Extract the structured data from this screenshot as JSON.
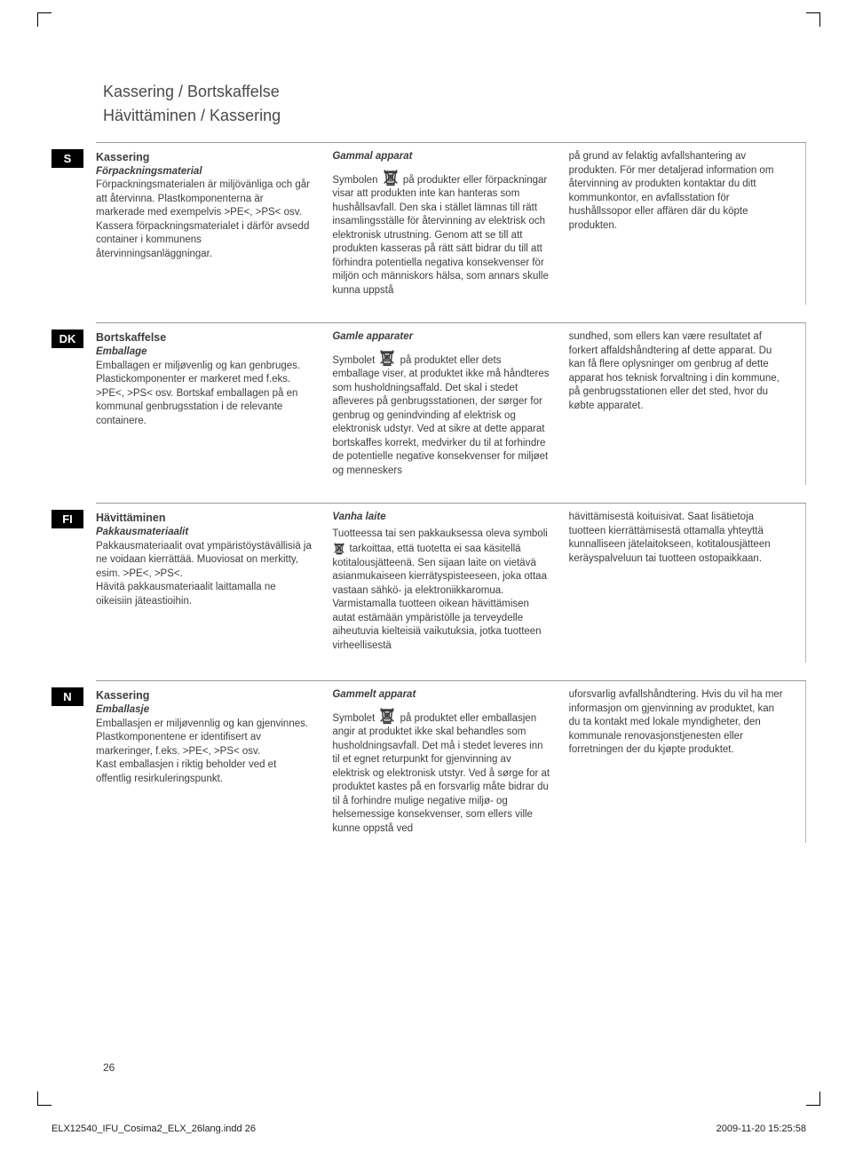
{
  "heading_line1": "Kassering  /  Bortskaffelse",
  "heading_line2": "Hävittäminen  /  Kassering",
  "page_number": "26",
  "footer_file": "ELX12540_IFU_Cosima2_ELX_26lang.indd   26",
  "footer_date": "2009-11-20   15:25:58",
  "sections": [
    {
      "lang": "S",
      "col1_title": "Kassering",
      "col1_subtitle": "Förpackningsmaterial",
      "col1_body": "Förpackningsmaterialen är miljövänliga och går att återvinna. Plastkomponenterna är markerade med exempelvis >PE<, >PS< osv. Kassera förpackningsmaterialet i därför avsedd container i kommunens återvinningsanläggningar.",
      "col2_subtitle": "Gammal apparat",
      "col2_pre": "Symbolen ",
      "col2_post": " på produkter eller förpackningar visar att produkten inte kan hanteras som hushållsavfall. Den ska i stället lämnas till rätt insamlingsställe för återvinning av elektrisk och elektronisk utrustning. Genom att se till att produkten kasseras på rätt sätt bidrar du till att förhindra potentiella negativa konsekvenser för miljön och människors hälsa, som annars skulle kunna uppstå",
      "col3_body": "på grund av felaktig avfallshantering av produkten. För mer detaljerad information om återvinning av produkten kontaktar du ditt kommunkontor, en avfallsstation för hushållssopor eller affären där du köpte produkten."
    },
    {
      "lang": "DK",
      "col1_title": "Bortskaffelse",
      "col1_subtitle": "Emballage",
      "col1_body": "Emballagen er miljøvenlig og kan genbruges. Plastickomponenter er markeret med f.eks. >PE<, >PS< osv. Bortskaf emballagen på en kommunal genbrugsstation i de relevante containere.",
      "col2_subtitle": "Gamle apparater",
      "col2_pre": "Symbolet ",
      "col2_post": " på produktet eller dets emballage viser, at produktet ikke må håndteres som husholdningsaffald. Det skal i stedet afleveres på genbrugsstationen, der sørger for genbrug og genindvinding af elektrisk og elektronisk udstyr. Ved at sikre at dette apparat bortskaffes korrekt, medvirker du til at forhindre de potentielle negative konsekvenser for miljøet og menneskers",
      "col3_body": "sundhed, som ellers kan være resultatet af forkert affaldshåndtering af dette apparat. Du kan få flere oplysninger om genbrug af dette apparat hos teknisk forvaltning i din kommune, på genbrugsstationen eller det sted, hvor du købte apparatet."
    },
    {
      "lang": "FI",
      "col1_title": "Hävittäminen",
      "col1_subtitle": "Pakkausmateriaalit",
      "col1_body": "Pakkausmateriaalit ovat ympäristöystävällisiä ja ne voidaan kierrättää. Muoviosat on merkitty, esim. >PE<, >PS<.\nHävitä pakkausmateriaalit laittamalla ne oikeisiin jäteastioihin.",
      "col2_subtitle": "Vanha laite",
      "col2_pre": "Tuotteessa tai sen pakkauksessa oleva symboli ",
      "col2_post": " tarkoittaa, että tuotetta ei saa käsitellä kotitalousjätteenä. Sen sijaan laite on vietävä asianmukaiseen kierrätyspisteeseen, joka ottaa vastaan sähkö- ja elektroniikkaromua. Varmistamalla tuotteen oikean hävittämisen autat estämään ympäristölle ja terveydelle aiheutuvia kielteisiä vaikutuksia, jotka tuotteen virheellisestä",
      "col3_body": "hävittämisestä koituisivat. Saat lisätietoja tuotteen kierrättämisestä ottamalla yhteyttä kunnalliseen jätelaitokseen, kotitalousjätteen keräyspalveluun tai tuotteen ostopaikkaan.",
      "col2_inline": true
    },
    {
      "lang": "N",
      "col1_title": "Kassering",
      "col1_subtitle": "Emballasje",
      "col1_body": "Emballasjen er miljøvennlig og kan gjenvinnes. Plastkomponentene er identifisert av markeringer, f.eks. >PE<, >PS< osv.\nKast emballasjen i riktig beholder ved et offentlig resirkuleringspunkt.",
      "col2_subtitle": "Gammelt apparat",
      "col2_pre": "Symbolet ",
      "col2_post": " på produktet eller emballasjen angir at produktet ikke skal behandles som husholdningsavfall. Det må i stedet leveres inn til et egnet returpunkt for gjenvinning av elektrisk og elektronisk utstyr. Ved å sørge for at produktet kastes på en forsvarlig måte bidrar du til å forhindre mulige negative miljø- og helsemessige konsekvenser, som ellers ville kunne oppstå ved",
      "col3_body": "uforsvarlig avfallshåndtering. Hvis du vil ha mer informasjon om gjenvinning av produktet, kan du ta kontakt med lokale myndigheter, den kommunale renovasjonstjenesten eller forretningen der du kjøpte produktet."
    }
  ]
}
